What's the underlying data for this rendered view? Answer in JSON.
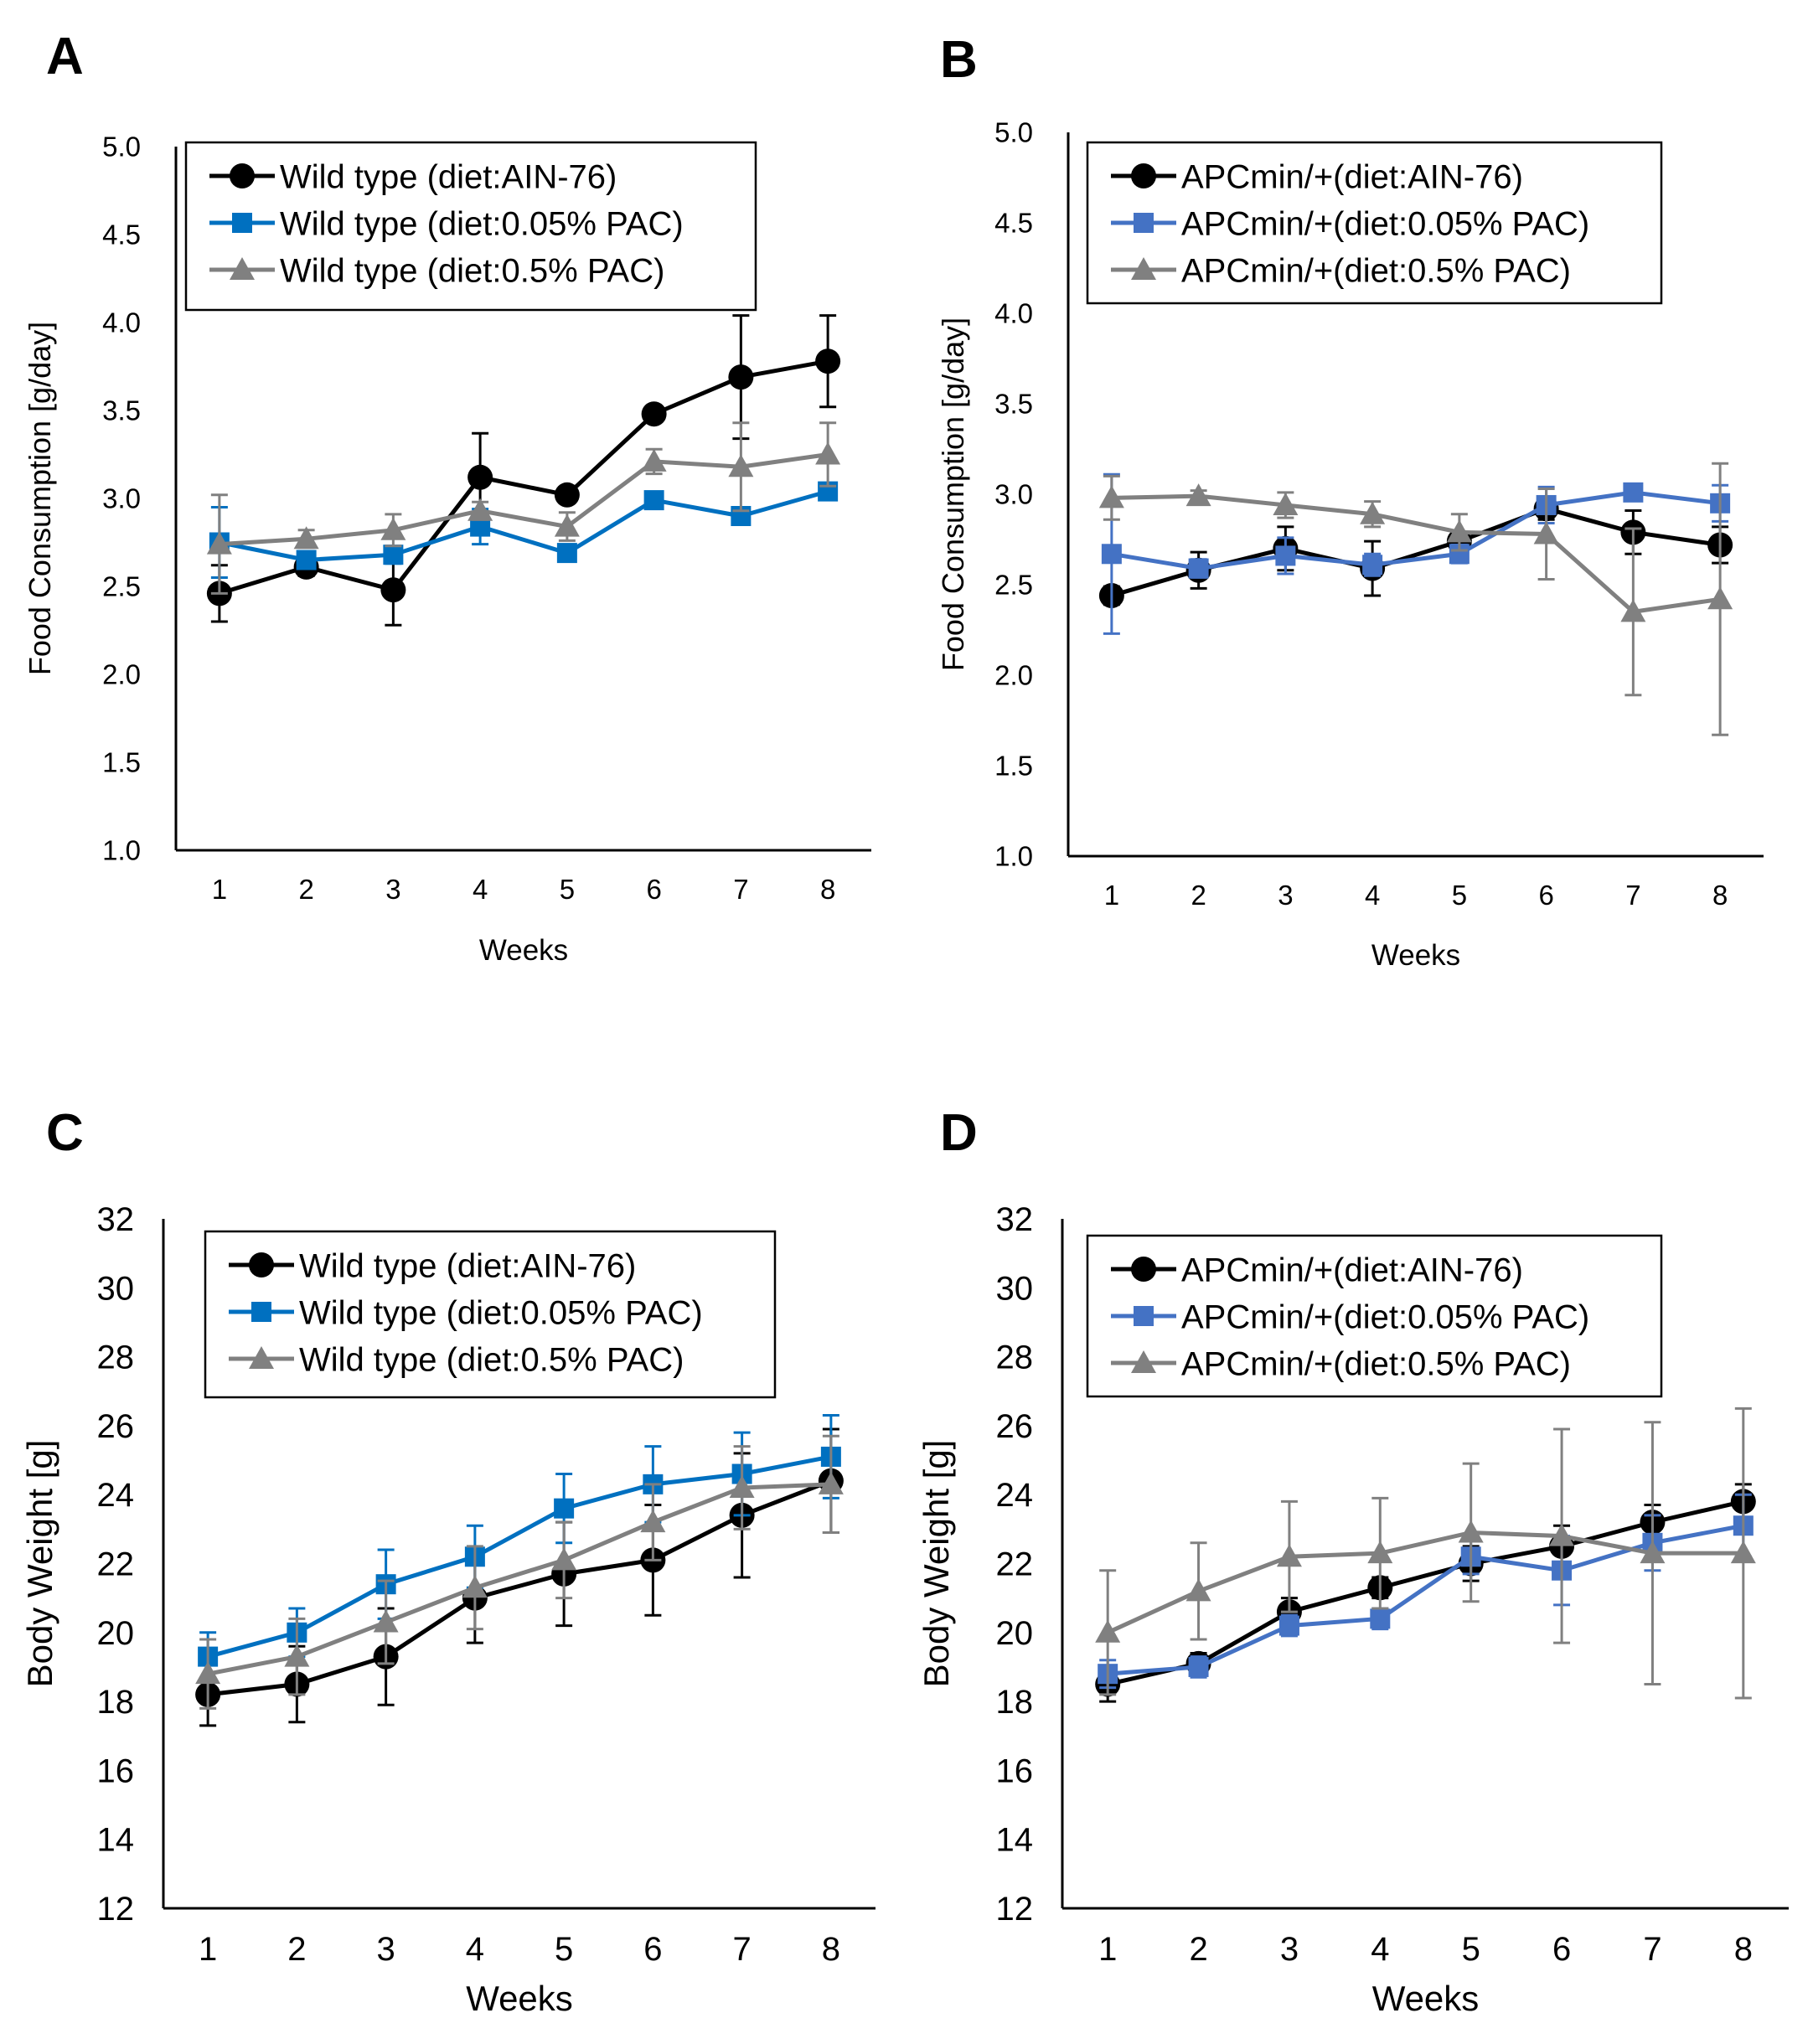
{
  "chart_data": [
    {
      "panel": "A",
      "type": "line",
      "xlabel": "Weeks",
      "ylabel": "Food Consumption [g/day]",
      "x": [
        1,
        2,
        3,
        4,
        5,
        6,
        7,
        8
      ],
      "ylim": [
        1.0,
        5.0
      ],
      "yticks": [
        "1.0",
        "1.5",
        "2.0",
        "2.5",
        "3.0",
        "3.5",
        "4.0",
        "4.5",
        "5.0"
      ],
      "legend_position": "top-left",
      "series": [
        {
          "name": "Wild type (diet:AIN-76)",
          "color": "#000000",
          "marker": "circle",
          "values": [
            2.46,
            2.61,
            2.48,
            3.12,
            3.02,
            3.48,
            3.69,
            3.78
          ],
          "errors": [
            0.16,
            0.05,
            0.2,
            0.25,
            0.03,
            0.04,
            0.35,
            0.26
          ]
        },
        {
          "name": "Wild type (diet:0.05% PAC)",
          "color": "#0070C0",
          "marker": "square",
          "values": [
            2.75,
            2.65,
            2.68,
            2.84,
            2.69,
            2.99,
            2.9,
            3.04
          ],
          "errors": [
            0.2,
            0.04,
            0.05,
            0.1,
            0.04,
            0.04,
            0.04,
            0.04
          ]
        },
        {
          "name": "Wild type (diet:0.5% PAC)",
          "color": "#808080",
          "marker": "triangle",
          "values": [
            2.74,
            2.77,
            2.82,
            2.93,
            2.84,
            3.21,
            3.18,
            3.25
          ],
          "errors": [
            0.28,
            0.05,
            0.09,
            0.05,
            0.08,
            0.07,
            0.25,
            0.18
          ]
        }
      ]
    },
    {
      "panel": "B",
      "type": "line",
      "xlabel": "Weeks",
      "ylabel": "Food Consumption [g/day]",
      "x": [
        1,
        2,
        3,
        4,
        5,
        6,
        7,
        8
      ],
      "ylim": [
        1.0,
        5.0
      ],
      "yticks": [
        "1.0",
        "1.5",
        "2.0",
        "2.5",
        "3.0",
        "3.5",
        "4.0",
        "4.5",
        "5.0"
      ],
      "legend_position": "top-left",
      "series": [
        {
          "name": "APCmin/+(diet:AIN-76)",
          "color": "#000000",
          "marker": "circle",
          "values": [
            2.44,
            2.58,
            2.7,
            2.59,
            2.74,
            2.92,
            2.79,
            2.72
          ],
          "errors": [
            0.05,
            0.1,
            0.12,
            0.15,
            0.05,
            0.06,
            0.12,
            0.1
          ]
        },
        {
          "name": "APCmin/+(diet:0.05% PAC)",
          "color": "#4472C4",
          "marker": "square",
          "values": [
            2.67,
            2.59,
            2.66,
            2.61,
            2.67,
            2.94,
            3.01,
            2.95
          ],
          "errors": [
            0.44,
            0.05,
            0.1,
            0.06,
            0.05,
            0.1,
            0.04,
            0.1
          ]
        },
        {
          "name": "APCmin/+(diet:0.5% PAC)",
          "color": "#808080",
          "marker": "triangle",
          "values": [
            2.98,
            2.99,
            2.94,
            2.89,
            2.79,
            2.78,
            2.35,
            2.42
          ],
          "errors": [
            0.12,
            0.03,
            0.07,
            0.07,
            0.1,
            0.25,
            0.46,
            0.75
          ]
        }
      ]
    },
    {
      "panel": "C",
      "type": "line",
      "xlabel": "Weeks",
      "ylabel": "Body Weight [g]",
      "x": [
        1,
        2,
        3,
        4,
        5,
        6,
        7,
        8
      ],
      "ylim": [
        12,
        32
      ],
      "yticks": [
        "12",
        "14",
        "16",
        "18",
        "20",
        "22",
        "24",
        "26",
        "28",
        "30",
        "32"
      ],
      "legend_position": "top-left",
      "series": [
        {
          "name": "Wild type (diet:AIN-76)",
          "color": "#000000",
          "marker": "circle",
          "values": [
            18.2,
            18.5,
            19.3,
            21.0,
            21.7,
            22.1,
            23.4,
            24.4
          ],
          "errors": [
            0.9,
            1.1,
            1.4,
            1.3,
            1.5,
            1.6,
            1.8,
            1.5
          ]
        },
        {
          "name": "Wild type (diet:0.05% PAC)",
          "color": "#0070C0",
          "marker": "square",
          "values": [
            19.3,
            20.0,
            21.4,
            22.2,
            23.6,
            24.3,
            24.6,
            25.1
          ],
          "errors": [
            0.7,
            0.7,
            1.0,
            0.9,
            1.0,
            1.1,
            1.2,
            1.2
          ]
        },
        {
          "name": "Wild type (diet:0.5% PAC)",
          "color": "#808080",
          "marker": "triangle",
          "values": [
            18.8,
            19.3,
            20.3,
            21.3,
            22.1,
            23.2,
            24.2,
            24.3
          ],
          "errors": [
            1.0,
            1.1,
            1.2,
            1.2,
            1.1,
            1.1,
            1.2,
            1.4
          ]
        }
      ]
    },
    {
      "panel": "D",
      "type": "line",
      "xlabel": "Weeks",
      "ylabel": "Body Weight [g]",
      "x": [
        1,
        2,
        3,
        4,
        5,
        6,
        7,
        8
      ],
      "ylim": [
        12,
        32
      ],
      "yticks": [
        "12",
        "14",
        "16",
        "18",
        "20",
        "22",
        "24",
        "26",
        "28",
        "30",
        "32"
      ],
      "legend_position": "top-left",
      "series": [
        {
          "name": "APCmin/+(diet:AIN-76)",
          "color": "#000000",
          "marker": "circle",
          "values": [
            18.5,
            19.1,
            20.6,
            21.3,
            22.0,
            22.5,
            23.2,
            23.8
          ],
          "errors": [
            0.5,
            0.3,
            0.4,
            0.3,
            0.5,
            0.6,
            0.5,
            0.5
          ]
        },
        {
          "name": "APCmin/+(diet:0.05% PAC)",
          "color": "#4472C4",
          "marker": "square",
          "values": [
            18.8,
            19.0,
            20.2,
            20.4,
            22.2,
            21.8,
            22.6,
            23.1
          ],
          "errors": [
            0.4,
            0.3,
            0.3,
            0.3,
            0.5,
            1.0,
            0.8,
            0.9
          ]
        },
        {
          "name": "APCmin/+(diet:0.5% PAC)",
          "color": "#808080",
          "marker": "triangle",
          "values": [
            20.0,
            21.2,
            22.2,
            22.3,
            22.9,
            22.8,
            22.3,
            22.3
          ],
          "errors": [
            1.8,
            1.4,
            1.6,
            1.6,
            2.0,
            3.1,
            3.8,
            4.2
          ]
        }
      ]
    }
  ]
}
